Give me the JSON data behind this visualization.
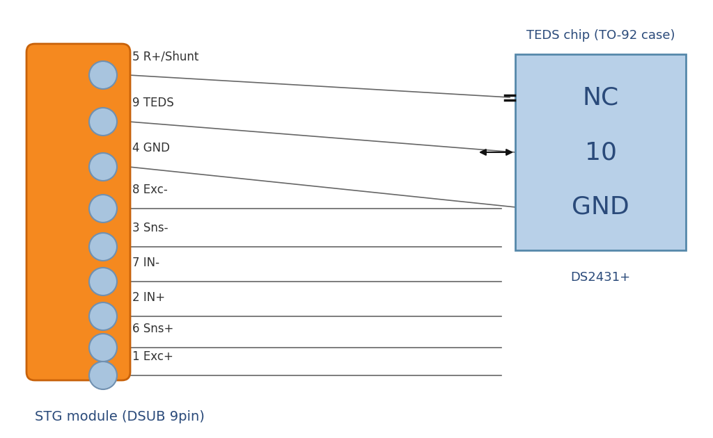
{
  "bg_color": "#ffffff",
  "stg_color": "#f5891f",
  "stg_outline_color": "#c8620a",
  "pin_color": "#a8c4de",
  "pin_outline_color": "#7090b0",
  "chip_fill_color": "#b8d0e8",
  "chip_outline_color": "#5588aa",
  "line_color": "#666666",
  "text_color": "#2a4a7a",
  "label_color": "#333333",
  "arrow_color": "#111111",
  "pins": [
    {
      "label": "5 R+/Shunt",
      "connects": "nc"
    },
    {
      "label": "9 TEDS",
      "connects": "teds"
    },
    {
      "label": "4 GND",
      "connects": "gnd"
    },
    {
      "label": "8 Exc-",
      "connects": "none"
    },
    {
      "label": "3 Sns-",
      "connects": "none"
    },
    {
      "label": "7 IN-",
      "connects": "none"
    },
    {
      "label": "2 IN+",
      "connects": "none"
    },
    {
      "label": "6 Sns+",
      "connects": "none"
    },
    {
      "label": "1 Exc+",
      "connects": "none"
    }
  ],
  "chip_labels": [
    "NC",
    "10",
    "GND"
  ],
  "chip_label": "TEDS chip (TO-92 case)",
  "chip_sublabel": "DS2431+",
  "stg_label": "STG module (DSUB 9pin)"
}
